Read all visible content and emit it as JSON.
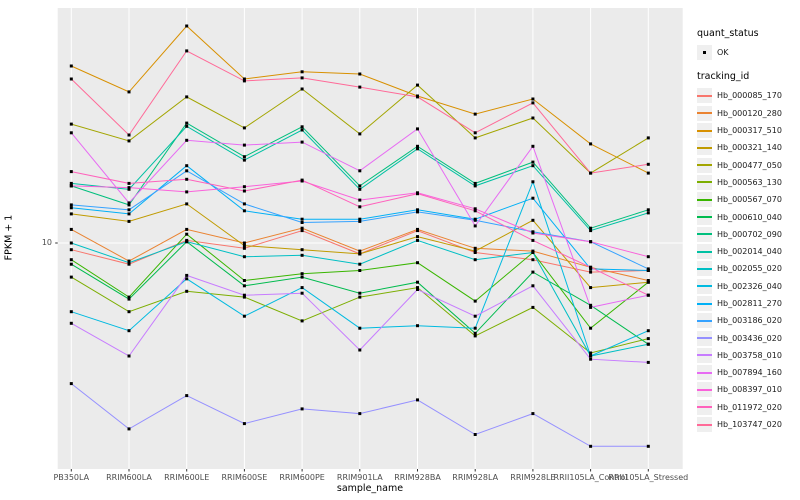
{
  "figure": {
    "x_axis_title": "sample_name",
    "y_axis_title": "FPKM + 1",
    "y_tick_label": "10"
  },
  "legend": {
    "quant_status_title": "quant_status",
    "ok_label": "OK",
    "tracking_title": "tracking_id"
  },
  "plot_colors": {
    "panel_background": "#EBEBEB",
    "grid_line": "#FFFFFF",
    "point_color": "#000000",
    "tick_mark": "#333333",
    "axis_text": "#4D4D4D"
  },
  "chart_data": {
    "type": "line",
    "title": "",
    "xlabel": "sample_name",
    "ylabel": "FPKM + 1",
    "y_scale": "log10",
    "y_ticks": [
      10
    ],
    "grid": true,
    "legend_position": "right",
    "quant_status": "OK",
    "categories": [
      "PB350LA",
      "RRIM600LA",
      "RRIM600LE",
      "RRIM600SE",
      "RRIM600PE",
      "RRIM901LA",
      "RRIM928BA",
      "RRIM928LA",
      "RRIM928LE",
      "RRII105LA_Control",
      "RRII105LA_Stressed"
    ],
    "series": [
      {
        "name": "Hb_000085_170",
        "color": "#F8766D",
        "values": [
          9.5,
          8.5,
          10.2,
          9.6,
          11.0,
          9.2,
          11.0,
          9.3,
          8.8,
          8.0,
          8.1
        ]
      },
      {
        "name": "Hb_000120_280",
        "color": "#EA8331",
        "values": [
          11.1,
          8.7,
          11.1,
          10.0,
          11.2,
          9.4,
          11.1,
          9.6,
          9.4,
          8.3,
          7.5
        ]
      },
      {
        "name": "Hb_000317_510",
        "color": "#D89000",
        "values": [
          38.9,
          31.9,
          52.9,
          35.2,
          37.2,
          36.6,
          30.9,
          26.9,
          30.2,
          21.4,
          17.1
        ]
      },
      {
        "name": "Hb_000321_140",
        "color": "#C09B00",
        "values": [
          12.5,
          11.8,
          13.5,
          9.8,
          9.5,
          9.2,
          10.5,
          9.4,
          11.9,
          7.1,
          7.4
        ]
      },
      {
        "name": "Hb_000477_050",
        "color": "#A3A500",
        "values": [
          24.9,
          21.9,
          30.7,
          24.2,
          32.6,
          23.1,
          33.6,
          22.4,
          26.1,
          17.1,
          22.4
        ]
      },
      {
        "name": "Hb_000563_130",
        "color": "#7CAE00",
        "values": [
          7.7,
          5.9,
          6.9,
          6.6,
          5.5,
          6.6,
          7.1,
          4.9,
          6.1,
          4.3,
          4.8
        ]
      },
      {
        "name": "Hb_000567_070",
        "color": "#39B600",
        "values": [
          8.8,
          6.6,
          10.7,
          7.5,
          7.9,
          8.1,
          8.6,
          6.4,
          9.3,
          5.2,
          7.4
        ]
      },
      {
        "name": "Hb_000610_040",
        "color": "#00BB4E",
        "values": [
          8.5,
          6.5,
          10.1,
          7.2,
          7.7,
          6.8,
          7.4,
          5.0,
          8.0,
          6.2,
          4.6
        ]
      },
      {
        "name": "Hb_000702_090",
        "color": "#00BF7D",
        "values": [
          15.5,
          13.4,
          25.1,
          19.4,
          24.4,
          15.5,
          21.0,
          15.8,
          18.6,
          11.2,
          12.9
        ]
      },
      {
        "name": "Hb_002014_040",
        "color": "#00C1A3",
        "values": [
          15.8,
          15.1,
          24.5,
          18.9,
          23.8,
          15.1,
          20.6,
          15.5,
          18.1,
          11.0,
          12.6
        ]
      },
      {
        "name": "Hb_002055_020",
        "color": "#00BFC4",
        "values": [
          10.0,
          8.6,
          10.1,
          9.0,
          9.1,
          8.5,
          10.2,
          8.8,
          9.3,
          4.2,
          4.6
        ]
      },
      {
        "name": "Hb_002326_040",
        "color": "#00BAE0",
        "values": [
          5.9,
          5.1,
          7.6,
          5.7,
          7.1,
          5.2,
          5.3,
          5.2,
          16.0,
          4.2,
          5.1
        ]
      },
      {
        "name": "Hb_002811_270",
        "color": "#00B0F6",
        "values": [
          13.1,
          12.5,
          18.1,
          12.8,
          12.0,
          12.0,
          12.9,
          12.0,
          14.1,
          8.2,
          8.1
        ]
      },
      {
        "name": "Hb_003186_020",
        "color": "#35A2FF",
        "values": [
          13.4,
          12.9,
          17.4,
          13.5,
          11.7,
          11.8,
          12.7,
          11.9,
          10.9,
          10.1,
          8.2
        ]
      },
      {
        "name": "Hb_003436_020",
        "color": "#9590FF",
        "values": [
          3.4,
          2.4,
          3.1,
          2.5,
          2.8,
          2.7,
          3.0,
          2.3,
          2.7,
          2.1,
          2.1
        ]
      },
      {
        "name": "Hb_003758_010",
        "color": "#C77CFF",
        "values": [
          5.4,
          4.2,
          7.8,
          6.7,
          6.8,
          4.4,
          7.0,
          5.7,
          7.2,
          4.1,
          4.0
        ]
      },
      {
        "name": "Hb_007894_160",
        "color": "#E76BF3",
        "values": [
          23.3,
          13.6,
          22.0,
          21.2,
          21.7,
          17.4,
          24.0,
          11.4,
          21.0,
          6.1,
          6.7
        ]
      },
      {
        "name": "Hb_008397_010",
        "color": "#FA62DB",
        "values": [
          15.5,
          15.3,
          14.8,
          15.4,
          16.1,
          13.9,
          14.7,
          13.0,
          10.8,
          10.1,
          9.0
        ]
      },
      {
        "name": "Hb_011972_020",
        "color": "#FF62BC",
        "values": [
          17.3,
          15.8,
          16.3,
          14.9,
          16.2,
          13.2,
          14.6,
          12.8,
          10.2,
          8.3,
          6.7
        ]
      },
      {
        "name": "Hb_103747_020",
        "color": "#FF6A98",
        "values": [
          35.2,
          22.9,
          43.7,
          34.7,
          35.5,
          33.1,
          30.7,
          23.3,
          29.3,
          17.1,
          18.3
        ]
      }
    ]
  }
}
